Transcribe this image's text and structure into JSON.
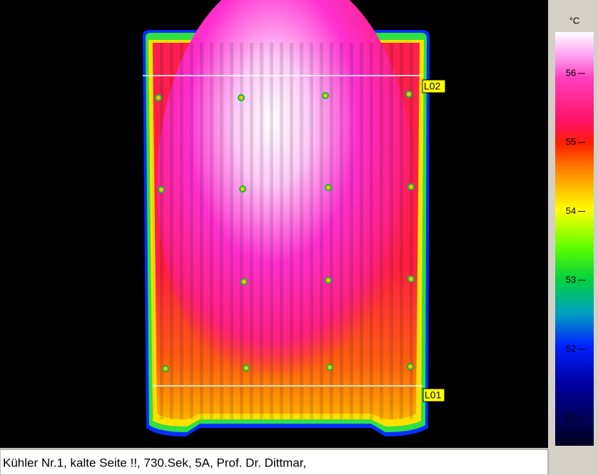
{
  "scale": {
    "unit": "°C",
    "range": [
      50.6,
      56.6
    ],
    "ticks": [
      51,
      52,
      53,
      54,
      55,
      56
    ]
  },
  "markers": [
    {
      "label": "L02"
    },
    {
      "label": "L01"
    }
  ],
  "caption": "Kühler Nr.1, kalte Seite !!, 730.Sek, 5A, Prof. Dr. Dittmar,"
}
